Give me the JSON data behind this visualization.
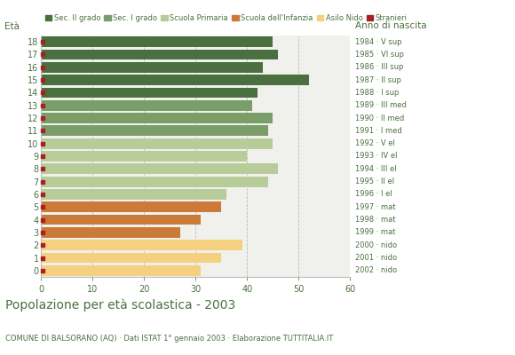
{
  "ages": [
    18,
    17,
    16,
    15,
    14,
    13,
    12,
    11,
    10,
    9,
    8,
    7,
    6,
    5,
    4,
    3,
    2,
    1,
    0
  ],
  "values": [
    45,
    46,
    43,
    52,
    42,
    41,
    45,
    44,
    45,
    40,
    46,
    44,
    36,
    35,
    31,
    27,
    39,
    35,
    31
  ],
  "anno_labels": [
    "1984 · V sup",
    "1985 · VI sup",
    "1986 · III sup",
    "1987 · II sup",
    "1988 · I sup",
    "1989 · III med",
    "1990 · II med",
    "1991 · I med",
    "1992 · V el",
    "1993 · IV el",
    "1994 · III el",
    "1995 · II el",
    "1996 · I el",
    "1997 · mat",
    "1998 · mat",
    "1999 · mat",
    "2000 · nido",
    "2001 · nido",
    "2002 · nido"
  ],
  "sec2_color": "#4a7040",
  "sec1_color": "#7a9e6a",
  "primaria_color": "#b8cc9a",
  "infanzia_color": "#cc7a38",
  "nido_color": "#f5d080",
  "stranieri_color": "#aa2020",
  "legend_labels": [
    "Sec. II grado",
    "Sec. I grado",
    "Scuola Primaria",
    "Scuola dell'Infanzia",
    "Asilo Nido",
    "Stranieri"
  ],
  "title": "Popolazione per età scolastica - 2003",
  "subtitle": "COMUNE DI BALSORANO (AQ) · Dati ISTAT 1° gennaio 2003 · Elaborazione TUTTITALIA.IT",
  "eta_label": "Età",
  "anno_label": "Anno di nascita",
  "xlim": [
    0,
    60
  ],
  "xticks": [
    0,
    10,
    20,
    30,
    40,
    50,
    60
  ],
  "text_color": "#4a7040",
  "plot_bg": "#f0f0ec",
  "fig_bg": "#ffffff",
  "grid_color": "#bbbbbb"
}
